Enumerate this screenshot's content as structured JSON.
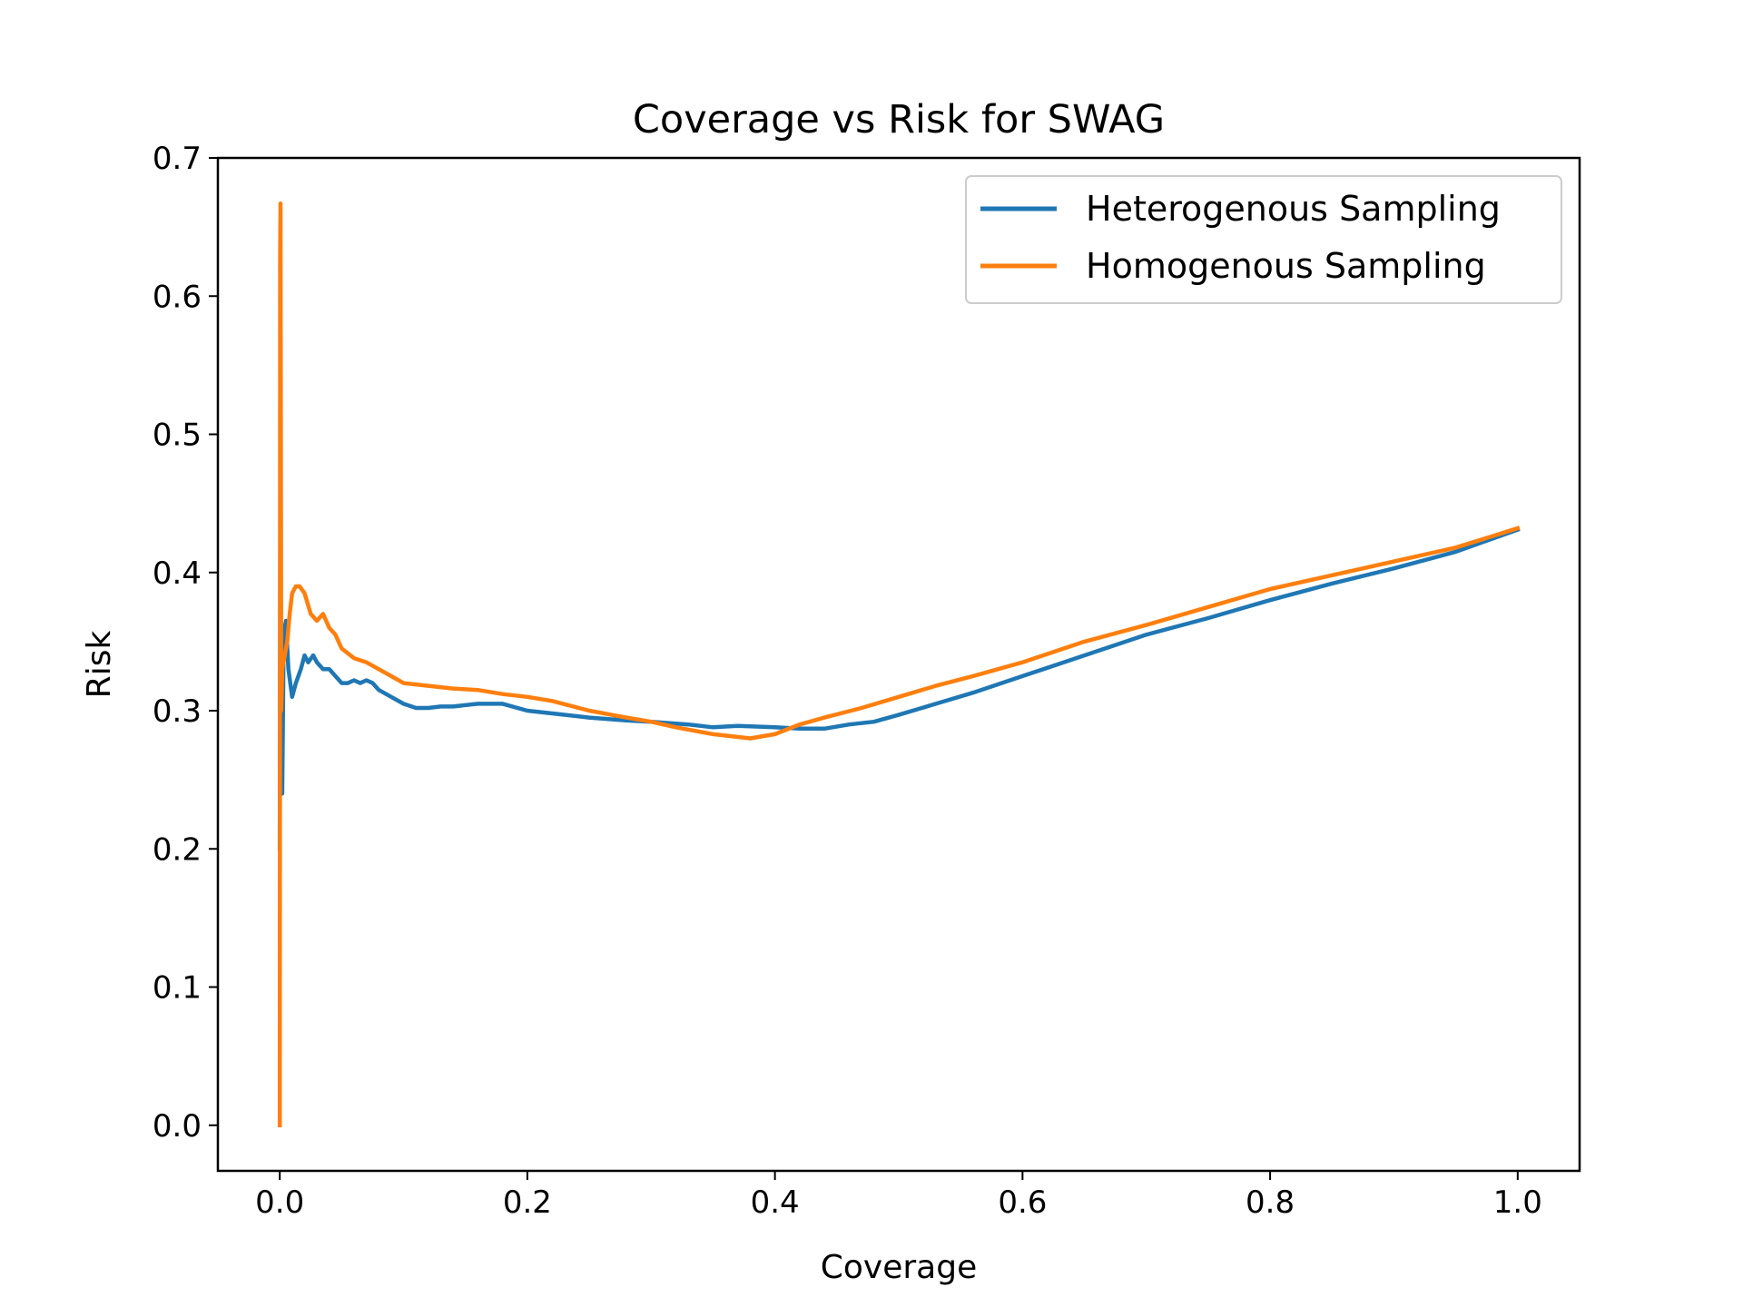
{
  "chart_data": {
    "type": "line",
    "title": "Coverage vs Risk for SWAG",
    "xlabel": "Coverage",
    "ylabel": "Risk",
    "xlim": [
      -0.05,
      1.05
    ],
    "ylim": [
      -0.033,
      0.7
    ],
    "xticks": [
      0.0,
      0.2,
      0.4,
      0.6,
      0.8,
      1.0
    ],
    "xtick_labels": [
      "0.0",
      "0.2",
      "0.4",
      "0.6",
      "0.8",
      "1.0"
    ],
    "yticks": [
      0.0,
      0.1,
      0.2,
      0.3,
      0.4,
      0.5,
      0.6,
      0.7
    ],
    "ytick_labels": [
      "0.0",
      "0.1",
      "0.2",
      "0.3",
      "0.4",
      "0.5",
      "0.6",
      "0.7"
    ],
    "grid": false,
    "legend_position": "top-right",
    "series": [
      {
        "name": "Heterogenous Sampling",
        "color": "#1f77b4",
        "points": [
          [
            0.0,
            0.2
          ],
          [
            0.0005,
            0.5
          ],
          [
            0.001,
            0.3
          ],
          [
            0.0015,
            0.24
          ],
          [
            0.002,
            0.24
          ],
          [
            0.003,
            0.34
          ],
          [
            0.004,
            0.36
          ],
          [
            0.005,
            0.365
          ],
          [
            0.007,
            0.33
          ],
          [
            0.01,
            0.31
          ],
          [
            0.013,
            0.32
          ],
          [
            0.017,
            0.33
          ],
          [
            0.02,
            0.34
          ],
          [
            0.023,
            0.335
          ],
          [
            0.027,
            0.34
          ],
          [
            0.03,
            0.335
          ],
          [
            0.035,
            0.33
          ],
          [
            0.04,
            0.33
          ],
          [
            0.045,
            0.325
          ],
          [
            0.05,
            0.32
          ],
          [
            0.055,
            0.32
          ],
          [
            0.06,
            0.322
          ],
          [
            0.065,
            0.32
          ],
          [
            0.07,
            0.322
          ],
          [
            0.075,
            0.32
          ],
          [
            0.08,
            0.315
          ],
          [
            0.09,
            0.31
          ],
          [
            0.1,
            0.305
          ],
          [
            0.11,
            0.302
          ],
          [
            0.12,
            0.302
          ],
          [
            0.13,
            0.303
          ],
          [
            0.14,
            0.303
          ],
          [
            0.16,
            0.305
          ],
          [
            0.18,
            0.305
          ],
          [
            0.2,
            0.3
          ],
          [
            0.22,
            0.298
          ],
          [
            0.25,
            0.295
          ],
          [
            0.28,
            0.293
          ],
          [
            0.3,
            0.292
          ],
          [
            0.33,
            0.29
          ],
          [
            0.35,
            0.288
          ],
          [
            0.37,
            0.289
          ],
          [
            0.4,
            0.288
          ],
          [
            0.42,
            0.287
          ],
          [
            0.44,
            0.287
          ],
          [
            0.46,
            0.29
          ],
          [
            0.48,
            0.292
          ],
          [
            0.5,
            0.297
          ],
          [
            0.53,
            0.305
          ],
          [
            0.56,
            0.313
          ],
          [
            0.6,
            0.325
          ],
          [
            0.65,
            0.34
          ],
          [
            0.7,
            0.355
          ],
          [
            0.75,
            0.367
          ],
          [
            0.8,
            0.38
          ],
          [
            0.85,
            0.392
          ],
          [
            0.9,
            0.403
          ],
          [
            0.95,
            0.415
          ],
          [
            1.0,
            0.431
          ]
        ]
      },
      {
        "name": "Homogenous Sampling",
        "color": "#ff7f0e",
        "points": [
          [
            0.0,
            0.0
          ],
          [
            0.0003,
            0.63
          ],
          [
            0.0006,
            0.667
          ],
          [
            0.0009,
            0.5
          ],
          [
            0.0012,
            0.3
          ],
          [
            0.002,
            0.33
          ],
          [
            0.004,
            0.34
          ],
          [
            0.006,
            0.35
          ],
          [
            0.008,
            0.37
          ],
          [
            0.01,
            0.385
          ],
          [
            0.013,
            0.39
          ],
          [
            0.016,
            0.39
          ],
          [
            0.02,
            0.385
          ],
          [
            0.025,
            0.37
          ],
          [
            0.03,
            0.365
          ],
          [
            0.035,
            0.37
          ],
          [
            0.04,
            0.36
          ],
          [
            0.045,
            0.355
          ],
          [
            0.05,
            0.345
          ],
          [
            0.06,
            0.338
          ],
          [
            0.07,
            0.335
          ],
          [
            0.08,
            0.33
          ],
          [
            0.09,
            0.325
          ],
          [
            0.1,
            0.32
          ],
          [
            0.12,
            0.318
          ],
          [
            0.14,
            0.316
          ],
          [
            0.16,
            0.315
          ],
          [
            0.18,
            0.312
          ],
          [
            0.2,
            0.31
          ],
          [
            0.22,
            0.307
          ],
          [
            0.25,
            0.3
          ],
          [
            0.28,
            0.295
          ],
          [
            0.3,
            0.292
          ],
          [
            0.32,
            0.288
          ],
          [
            0.35,
            0.283
          ],
          [
            0.38,
            0.28
          ],
          [
            0.4,
            0.283
          ],
          [
            0.42,
            0.29
          ],
          [
            0.44,
            0.295
          ],
          [
            0.47,
            0.302
          ],
          [
            0.5,
            0.31
          ],
          [
            0.53,
            0.318
          ],
          [
            0.56,
            0.325
          ],
          [
            0.6,
            0.335
          ],
          [
            0.65,
            0.35
          ],
          [
            0.7,
            0.362
          ],
          [
            0.75,
            0.375
          ],
          [
            0.8,
            0.388
          ],
          [
            0.85,
            0.398
          ],
          [
            0.9,
            0.408
          ],
          [
            0.95,
            0.418
          ],
          [
            1.0,
            0.432
          ]
        ]
      }
    ]
  }
}
